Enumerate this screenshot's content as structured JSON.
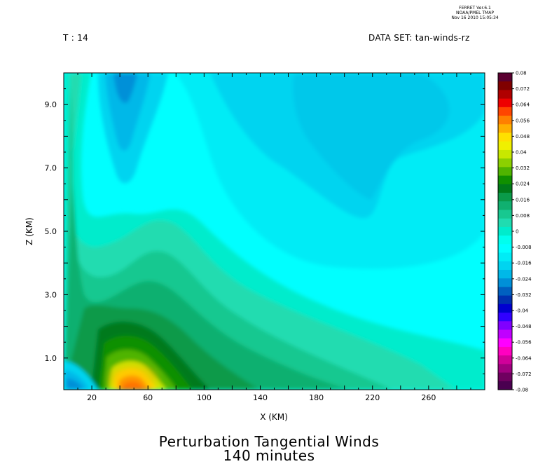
{
  "header": {
    "left": "T : 14",
    "right": "DATA SET: tan-winds-rz",
    "ferret": [
      "FERRET Ver.6.1",
      "NOAA/PMEL TMAP",
      "Nov 16 2010 15:05:34"
    ]
  },
  "title": [
    "Perturbation Tangential Winds",
    "140 minutes"
  ],
  "chart_data": {
    "type": "heatmap",
    "subtype": "filled-contour",
    "title": "Perturbation Tangential Winds 140 minutes",
    "xlabel": "X (KM)",
    "ylabel": "Z (KM)",
    "xlim": [
      0,
      300
    ],
    "ylim": [
      0,
      10
    ],
    "x_ticks": [
      20,
      60,
      100,
      140,
      180,
      220,
      260
    ],
    "y_ticks": [
      "1.0",
      "3.0",
      "5.0",
      "7.0",
      "9.0"
    ],
    "colorbar": {
      "range": [
        -0.08,
        0.08
      ],
      "labels": [
        "0.08",
        "0.072",
        "0.064",
        "0.056",
        "0.048",
        "0.04",
        "0.032",
        "0.024",
        "0.016",
        "0.008",
        "0",
        "-0.008",
        "-0.016",
        "-0.024",
        "-0.032",
        "-0.04",
        "-0.048",
        "-0.056",
        "-0.064",
        "-0.072",
        "-0.08"
      ],
      "colors": [
        "#5a0030",
        "#800000",
        "#b00000",
        "#ee0000",
        "#ff4500",
        "#ff8000",
        "#ffb000",
        "#ffe000",
        "#f0f000",
        "#c8e800",
        "#8cd000",
        "#50b400",
        "#109000",
        "#007a1a",
        "#0a9a4a",
        "#10b070",
        "#18c890",
        "#20dcb0",
        "#00eccc",
        "#00ffee",
        "#00ffff",
        "#00ecf6",
        "#00d4f0",
        "#00b8e8",
        "#0090d8",
        "#0060c0",
        "#0030b0",
        "#0000d0",
        "#3000ff",
        "#8000ff",
        "#c000ff",
        "#ff00ff",
        "#ff00c0",
        "#d0009a",
        "#a00080",
        "#700060",
        "#4a0050"
      ]
    },
    "features": [
      {
        "desc": "positive maximum",
        "x": 48,
        "z": 0.3,
        "value": 0.056
      },
      {
        "desc": "negative minimum (lower left)",
        "x": 15,
        "z": 0.3,
        "value": -0.012
      },
      {
        "desc": "negative lobe aloft",
        "x": 45,
        "z": 9.5,
        "value": -0.012
      },
      {
        "desc": "broad negative region",
        "x": 190,
        "z": 7.0,
        "value": -0.008
      }
    ]
  }
}
